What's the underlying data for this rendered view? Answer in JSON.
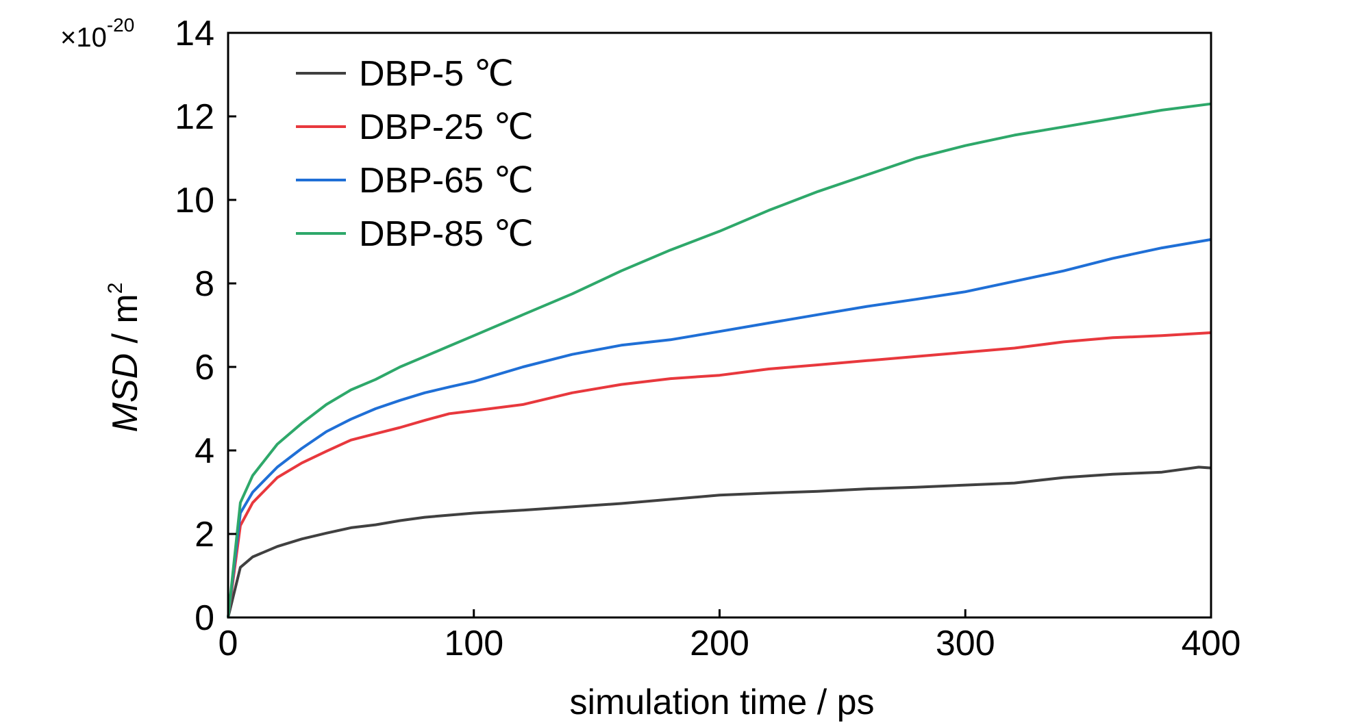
{
  "chart_data": {
    "type": "line",
    "xlabel": "simulation time / ps",
    "ylabel_italic": "MSD",
    "ylabel_rest": " / m",
    "ylabel_sup": "2",
    "y_multiplier_base": "×10",
    "y_multiplier_exp": "-20",
    "xlim": [
      0,
      400
    ],
    "ylim": [
      0,
      14
    ],
    "x_ticks": [
      "0",
      "100",
      "200",
      "300",
      "400"
    ],
    "y_ticks": [
      "0",
      "2",
      "4",
      "6",
      "8",
      "10",
      "12",
      "14"
    ],
    "grid": false,
    "legend_position": "top-left",
    "series": [
      {
        "name": "DBP-5 ℃",
        "color": "#404040",
        "x": [
          0,
          5,
          10,
          20,
          30,
          40,
          50,
          60,
          70,
          80,
          90,
          100,
          120,
          140,
          160,
          180,
          200,
          220,
          240,
          260,
          280,
          300,
          320,
          340,
          360,
          380,
          395,
          400
        ],
        "y": [
          0,
          1.2,
          1.45,
          1.7,
          1.88,
          2.02,
          2.15,
          2.22,
          2.32,
          2.4,
          2.45,
          2.5,
          2.57,
          2.65,
          2.73,
          2.83,
          2.93,
          2.98,
          3.02,
          3.08,
          3.12,
          3.17,
          3.22,
          3.35,
          3.43,
          3.48,
          3.6,
          3.58
        ]
      },
      {
        "name": "DBP-25 ℃",
        "color": "#e8383d",
        "x": [
          0,
          5,
          10,
          20,
          30,
          40,
          50,
          60,
          70,
          80,
          90,
          100,
          120,
          140,
          160,
          180,
          200,
          220,
          240,
          260,
          280,
          300,
          320,
          340,
          360,
          380,
          400
        ],
        "y": [
          0,
          2.2,
          2.75,
          3.35,
          3.7,
          3.98,
          4.25,
          4.4,
          4.55,
          4.72,
          4.88,
          4.95,
          5.1,
          5.38,
          5.58,
          5.72,
          5.8,
          5.95,
          6.05,
          6.15,
          6.25,
          6.35,
          6.45,
          6.6,
          6.7,
          6.75,
          6.82
        ]
      },
      {
        "name": "DBP-65 ℃",
        "color": "#1f6fd6",
        "x": [
          0,
          5,
          10,
          20,
          30,
          40,
          50,
          60,
          70,
          80,
          90,
          100,
          120,
          140,
          160,
          180,
          200,
          220,
          240,
          260,
          280,
          300,
          320,
          340,
          360,
          380,
          400
        ],
        "y": [
          0,
          2.5,
          3.0,
          3.6,
          4.05,
          4.45,
          4.75,
          5.0,
          5.2,
          5.38,
          5.52,
          5.65,
          6.0,
          6.3,
          6.52,
          6.65,
          6.85,
          7.05,
          7.25,
          7.45,
          7.62,
          7.8,
          8.05,
          8.3,
          8.6,
          8.85,
          9.05
        ]
      },
      {
        "name": "DBP-85 ℃",
        "color": "#2ea86a",
        "x": [
          0,
          5,
          10,
          20,
          30,
          40,
          50,
          60,
          70,
          80,
          90,
          100,
          120,
          140,
          160,
          180,
          200,
          220,
          240,
          260,
          280,
          300,
          320,
          340,
          360,
          380,
          400
        ],
        "y": [
          0,
          2.75,
          3.4,
          4.15,
          4.65,
          5.1,
          5.45,
          5.7,
          6.0,
          6.25,
          6.5,
          6.75,
          7.25,
          7.75,
          8.3,
          8.8,
          9.25,
          9.75,
          10.2,
          10.6,
          11.0,
          11.3,
          11.55,
          11.75,
          11.95,
          12.15,
          12.3
        ]
      }
    ]
  }
}
